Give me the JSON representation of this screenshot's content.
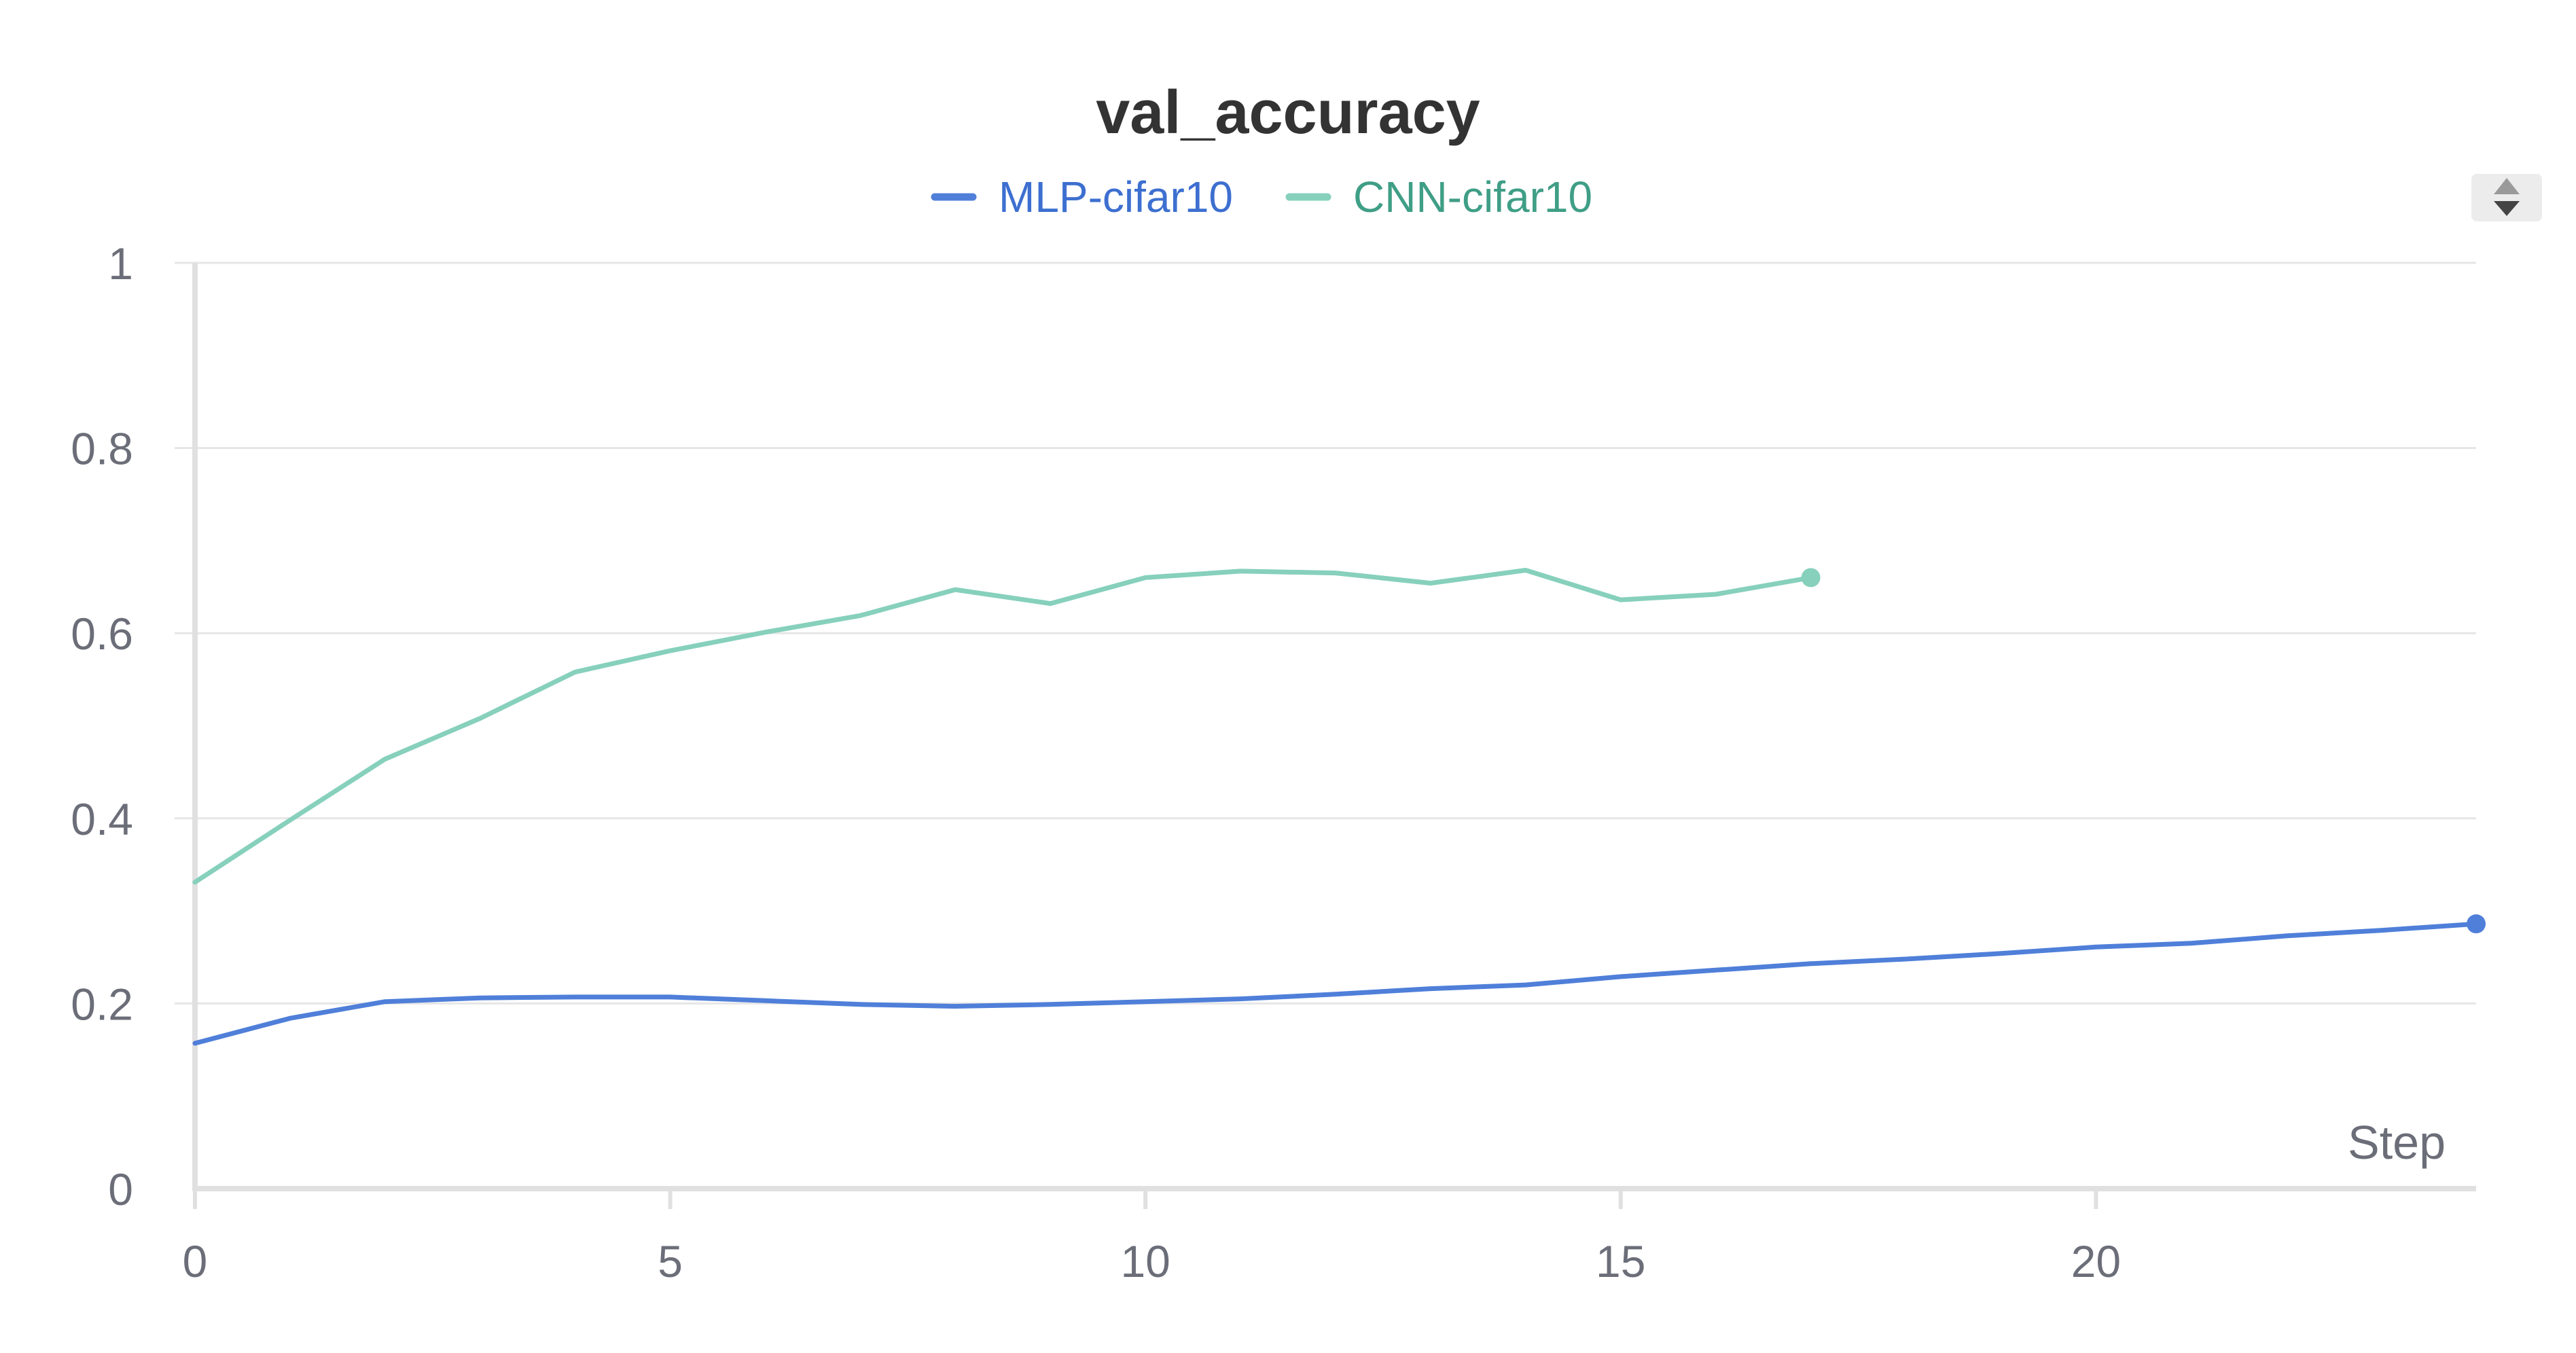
{
  "chart_data": {
    "type": "line",
    "title": "val_accuracy",
    "xlabel": "Step",
    "ylabel": "",
    "xlim": [
      0,
      24
    ],
    "ylim": [
      0,
      1
    ],
    "xticks": [
      0,
      5,
      10,
      15,
      20
    ],
    "yticks": [
      0,
      0.2,
      0.4,
      0.6,
      0.8,
      1
    ],
    "ytick_labels": [
      "0",
      "0.2",
      "0.4",
      "0.6",
      "0.8",
      "1"
    ],
    "xtick_labels": [
      "0",
      "5",
      "10",
      "15",
      "20"
    ],
    "grid": true,
    "legend_position": "top-center",
    "series": [
      {
        "name": "MLP-cifar10",
        "color": "#4f7fd9",
        "legend_text_color": "#3d6fd0",
        "x": [
          0,
          1,
          2,
          3,
          4,
          5,
          6,
          7,
          8,
          9,
          10,
          11,
          12,
          13,
          14,
          15,
          16,
          17,
          18,
          19,
          20,
          21,
          22,
          23,
          24
        ],
        "y": [
          0.157,
          0.184,
          0.202,
          0.206,
          0.207,
          0.207,
          0.203,
          0.199,
          0.197,
          0.199,
          0.202,
          0.205,
          0.21,
          0.216,
          0.22,
          0.229,
          0.236,
          0.243,
          0.248,
          0.254,
          0.261,
          0.265,
          0.273,
          0.279,
          0.286
        ]
      },
      {
        "name": "CNN-cifar10",
        "color": "#86d0bc",
        "legend_text_color": "#3f9e86",
        "x": [
          0,
          1,
          2,
          3,
          4,
          5,
          6,
          7,
          8,
          9,
          10,
          11,
          12,
          13,
          14,
          15,
          16,
          17
        ],
        "y": [
          0.331,
          0.398,
          0.464,
          0.508,
          0.558,
          0.581,
          0.601,
          0.619,
          0.647,
          0.632,
          0.66,
          0.667,
          0.665,
          0.654,
          0.668,
          0.636,
          0.642,
          0.66
        ]
      }
    ]
  },
  "controls": {
    "scroll_icon": "up-down-arrows-icon"
  }
}
